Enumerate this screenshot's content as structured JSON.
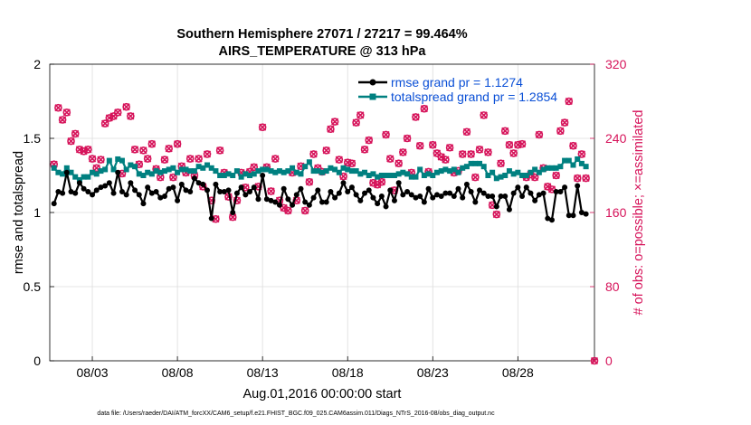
{
  "chart_data": {
    "type": "line",
    "title_line1": "Southern Hemisphere 27071 / 27217 = 99.464%",
    "title_line2": "AIRS_TEMPERATURE @ 313 hPa",
    "xlabel": "Aug.01,2016 00:00:00 start",
    "ylabel_left": "rmse and totalspread",
    "ylabel_right": "# of obs: o=possible; ×=assimilated",
    "footer": "data file: /Users/raeder/DAI/ATM_forcXX/CAM6_setup/f.e21.FHIST_BGC.f09_025.CAM6assim.011/Diags_NTrS_2016-08/obs_diag_output.nc",
    "xlim": [
      0.5,
      32.5
    ],
    "ylim_left": [
      0,
      2
    ],
    "ylim_right": [
      0,
      320
    ],
    "grid": true,
    "legend_position": "top-right",
    "xtick_values": [
      3,
      8,
      13,
      18,
      23,
      28
    ],
    "xtick_labels": [
      "08/03",
      "08/08",
      "08/13",
      "08/18",
      "08/23",
      "08/28"
    ],
    "ytick_left": [
      "0",
      "0.5",
      "1",
      "1.5",
      "2"
    ],
    "ytick_left_values": [
      0,
      0.5,
      1,
      1.5,
      2
    ],
    "ytick_right": [
      "0",
      "80",
      "160",
      "240",
      "320"
    ],
    "ytick_right_values": [
      0,
      80,
      160,
      240,
      320
    ],
    "colors": {
      "rmse": "#000000",
      "spread": "#008080",
      "obs": "#d6135a",
      "legend_text": "#0a4fd6"
    },
    "x": [
      0.75,
      1,
      1.25,
      1.5,
      1.75,
      2,
      2.25,
      2.5,
      2.75,
      3,
      3.25,
      3.5,
      3.75,
      4,
      4.25,
      4.5,
      4.75,
      5,
      5.25,
      5.5,
      5.75,
      6,
      6.25,
      6.5,
      6.75,
      7,
      7.25,
      7.5,
      7.75,
      8,
      8.25,
      8.5,
      8.75,
      9,
      9.25,
      9.5,
      9.75,
      10,
      10.25,
      10.5,
      10.75,
      11,
      11.25,
      11.5,
      11.75,
      12,
      12.25,
      12.5,
      12.75,
      13,
      13.25,
      13.5,
      13.75,
      14,
      14.25,
      14.5,
      14.75,
      15,
      15.25,
      15.5,
      15.75,
      16,
      16.25,
      16.5,
      16.75,
      17,
      17.25,
      17.5,
      17.75,
      18,
      18.25,
      18.5,
      18.75,
      19,
      19.25,
      19.5,
      19.75,
      20,
      20.25,
      20.5,
      20.75,
      21,
      21.25,
      21.5,
      21.75,
      22,
      22.25,
      22.5,
      22.75,
      23,
      23.25,
      23.5,
      23.75,
      24,
      24.25,
      24.5,
      24.75,
      25,
      25.25,
      25.5,
      25.75,
      26,
      26.25,
      26.5,
      26.75,
      27,
      27.25,
      27.5,
      27.75,
      28,
      28.25,
      28.5,
      28.75,
      29,
      29.25,
      29.5,
      29.75,
      30,
      30.25,
      30.5,
      30.75,
      31,
      31.25,
      31.5,
      31.75,
      32
    ],
    "series": [
      {
        "name": "rmse grand pr = 1.1274",
        "marker": "dot",
        "values": [
          1.06,
          1.14,
          1.13,
          1.27,
          1.14,
          1.13,
          1.2,
          1.16,
          1.14,
          1.12,
          1.15,
          1.17,
          1.18,
          1.2,
          1.13,
          1.27,
          1.14,
          1.12,
          1.2,
          1.15,
          1.12,
          1.06,
          1.17,
          1.13,
          1.14,
          1.1,
          1.11,
          1.16,
          1.17,
          1.08,
          1.19,
          1.15,
          1.14,
          1.23,
          1.2,
          1.19,
          1.15,
          0.96,
          1.19,
          1.14,
          1.14,
          1.15,
          1.0,
          1.13,
          1.17,
          1.12,
          1.14,
          1.17,
          1.09,
          1.25,
          1.09,
          1.08,
          1.07,
          1.05,
          1.16,
          1.09,
          1.05,
          1.12,
          1.16,
          1.07,
          1.05,
          1.1,
          1.15,
          1.07,
          1.07,
          1.14,
          1.1,
          1.13,
          1.2,
          1.14,
          1.17,
          1.12,
          1.08,
          1.13,
          1.15,
          1.1,
          1.06,
          1.11,
          1.04,
          1.15,
          1.08,
          1.2,
          1.12,
          1.14,
          1.12,
          1.1,
          1.11,
          1.07,
          1.16,
          1.1,
          1.12,
          1.11,
          1.13,
          1.13,
          1.11,
          1.16,
          1.1,
          1.19,
          1.14,
          1.07,
          1.15,
          1.13,
          1.11,
          1.11,
          1.04,
          1.11,
          1.11,
          1.02,
          1.13,
          1.17,
          1.11,
          1.17,
          1.13,
          1.08,
          1.12,
          1.13,
          0.96,
          0.95,
          1.14,
          1.14,
          1.17,
          0.98,
          0.98,
          1.18,
          1.0,
          0.99
        ]
      },
      {
        "name": "totalspread grand pr = 1.2854",
        "marker": "square",
        "values": [
          1.3,
          1.27,
          1.26,
          1.3,
          1.27,
          1.24,
          1.22,
          1.24,
          1.24,
          1.27,
          1.26,
          1.28,
          1.29,
          1.35,
          1.29,
          1.36,
          1.35,
          1.29,
          1.32,
          1.31,
          1.26,
          1.25,
          1.27,
          1.26,
          1.28,
          1.27,
          1.28,
          1.29,
          1.3,
          1.27,
          1.29,
          1.29,
          1.28,
          1.28,
          1.31,
          1.3,
          1.32,
          1.3,
          1.28,
          1.25,
          1.25,
          1.26,
          1.25,
          1.28,
          1.24,
          1.26,
          1.25,
          1.26,
          1.28,
          1.29,
          1.29,
          1.28,
          1.27,
          1.28,
          1.27,
          1.28,
          1.3,
          1.27,
          1.26,
          1.31,
          1.34,
          1.28,
          1.28,
          1.27,
          1.28,
          1.3,
          1.29,
          1.27,
          1.3,
          1.29,
          1.28,
          1.28,
          1.26,
          1.27,
          1.25,
          1.26,
          1.24,
          1.25,
          1.25,
          1.25,
          1.25,
          1.26,
          1.27,
          1.26,
          1.24,
          1.24,
          1.29,
          1.25,
          1.26,
          1.25,
          1.27,
          1.28,
          1.29,
          1.28,
          1.29,
          1.27,
          1.3,
          1.31,
          1.33,
          1.33,
          1.33,
          1.31,
          1.25,
          1.27,
          1.23,
          1.24,
          1.25,
          1.28,
          1.26,
          1.27,
          1.25,
          1.25,
          1.27,
          1.29,
          1.27,
          1.29,
          1.3,
          1.3,
          1.3,
          1.31,
          1.35,
          1.35,
          1.32,
          1.36,
          1.33,
          1.31
        ]
      }
    ],
    "obs_series": {
      "name": "# of obs",
      "values": [
        212,
        273,
        260,
        268,
        237,
        245,
        228,
        226,
        228,
        218,
        208,
        217,
        256,
        262,
        264,
        268,
        202,
        274,
        264,
        228,
        212,
        227,
        218,
        234,
        207,
        198,
        217,
        229,
        198,
        234,
        210,
        203,
        218,
        200,
        218,
        188,
        223,
        173,
        153,
        227,
        203,
        177,
        155,
        173,
        203,
        187,
        204,
        209,
        188,
        252,
        209,
        183,
        218,
        173,
        165,
        162,
        203,
        173,
        210,
        162,
        193,
        223,
        208,
        204,
        227,
        250,
        258,
        217,
        199,
        214,
        213,
        257,
        265,
        228,
        238,
        192,
        190,
        193,
        244,
        218,
        184,
        213,
        225,
        240,
        203,
        263,
        232,
        272,
        204,
        233,
        224,
        220,
        217,
        230,
        203,
        205,
        223,
        247,
        223,
        198,
        228,
        265,
        225,
        168,
        158,
        213,
        248,
        233,
        224,
        233,
        234,
        198,
        201,
        198,
        244,
        208,
        188,
        185,
        200,
        248,
        257,
        280,
        232,
        197,
        223,
        197
      ]
    }
  }
}
